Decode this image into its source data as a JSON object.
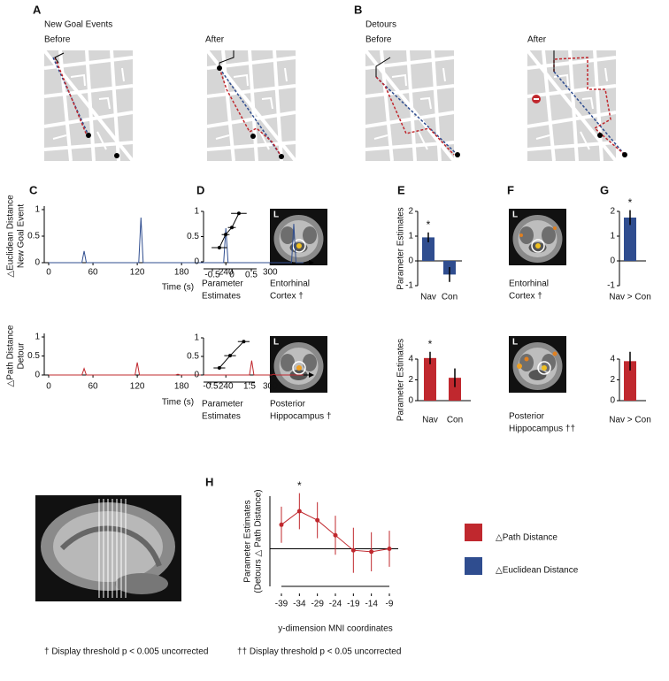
{
  "panel_letters": [
    "A",
    "B",
    "C",
    "D",
    "E",
    "F",
    "G",
    "H"
  ],
  "map_panels": [
    {
      "title": "New Goal Events",
      "before": "Before",
      "after": "After"
    },
    {
      "title": "Detours",
      "before": "Before",
      "after": "After"
    }
  ],
  "brains": [
    {
      "side": "L",
      "region": [
        "Entorhinal",
        "Cortex †"
      ]
    },
    {
      "side": "L",
      "region": [
        "Posterior",
        "Hippocampus †"
      ]
    },
    {
      "side": "L",
      "region": [
        "Entorhinal",
        "Cortex †"
      ]
    },
    {
      "side": "L",
      "region": [
        "Posterior",
        "Hippocampus ††"
      ]
    }
  ],
  "legend": [
    {
      "name": "△Path Distance",
      "color": "#c0282e"
    },
    {
      "name": "△Euclidean Distance",
      "color": "#2f4d8f"
    }
  ],
  "footnotes": [
    "† Display threshold p < 0.005 uncorrected",
    "†† Display threshold p < 0.05 uncorrected"
  ],
  "chart_data": [
    {
      "type": "line",
      "y_label": [
        "△Euclidean Distance",
        "New Goal Event"
      ],
      "x_label": "Time (s)",
      "color": "#2f4d8f",
      "x": [
        0,
        45,
        48,
        51,
        122,
        125,
        128,
        237,
        240,
        243,
        329,
        332,
        335,
        345
      ],
      "values": [
        0,
        0,
        0.22,
        0,
        0,
        0.85,
        0,
        0,
        0.65,
        0,
        0,
        0.73,
        0,
        0
      ],
      "xlim": [
        0,
        350
      ],
      "xticks": [
        0,
        60,
        120,
        180,
        240,
        300
      ],
      "ylim": [
        0,
        1
      ],
      "yticks": [
        0,
        0.5,
        1
      ]
    },
    {
      "type": "line",
      "y_label": [
        "△Path Distance",
        "Detour"
      ],
      "x_label": "Time (s)",
      "color": "#c0282e",
      "x": [
        0,
        45,
        48,
        51,
        117,
        120,
        123,
        172,
        175,
        178,
        272,
        275,
        278,
        302,
        305,
        308,
        345
      ],
      "values": [
        0,
        0,
        0.17,
        0,
        0,
        0.33,
        0,
        0,
        0.02,
        0,
        0,
        0.38,
        0,
        0,
        0.02,
        0,
        0
      ],
      "xlim": [
        0,
        350
      ],
      "xticks": [
        0,
        60,
        120,
        180,
        240,
        300
      ],
      "ylim": [
        0,
        1
      ],
      "yticks": [
        0,
        0.5,
        1
      ]
    },
    {
      "type": "scatter",
      "x_label": [
        "Parameter",
        "Estimates"
      ],
      "x": [
        -0.32,
        -0.16,
        0,
        0.18
      ],
      "values": [
        0.28,
        0.54,
        0.68,
        0.96
      ],
      "xerr": [
        0.2,
        0.1,
        0.1,
        0.2
      ],
      "xlim": [
        -0.5,
        0.5
      ],
      "xticks": [
        -0.5,
        0,
        0.5
      ],
      "ylim": [
        0,
        1
      ],
      "yticks": [
        0,
        0.5,
        1
      ]
    },
    {
      "type": "scatter",
      "x_label": [
        "Parameter",
        "Estimates"
      ],
      "x": [
        -0.05,
        0.5,
        1.2
      ],
      "values": [
        0.19,
        0.52,
        0.9
      ],
      "xerr": [
        0.3,
        0.3,
        0.3
      ],
      "xlim": [
        -0.5,
        1.5
      ],
      "xticks": [
        -0.5,
        1.5
      ],
      "ylim": [
        0,
        1
      ],
      "yticks": [
        0,
        0.5,
        1
      ]
    },
    {
      "type": "bar",
      "y_label": "Parameter Estimates",
      "color": "#2f4d8f",
      "categories": [
        "Nav",
        "Con"
      ],
      "values": [
        0.95,
        -0.55
      ],
      "errors": [
        0.2,
        0.3
      ],
      "ylim": [
        -1,
        2
      ],
      "yticks": [
        -1,
        0,
        1,
        2
      ],
      "annotations": [
        {
          "text": "*",
          "x": "Nav"
        }
      ]
    },
    {
      "type": "bar",
      "y_label": "Parameter Estimates",
      "color": "#c0282e",
      "categories": [
        "Nav",
        "Con"
      ],
      "values": [
        4.1,
        2.2
      ],
      "errors": [
        0.6,
        0.9
      ],
      "ylim": [
        0,
        4
      ],
      "yticks": [
        0,
        2,
        4
      ],
      "annotations": [
        {
          "text": "*",
          "x": "Nav"
        }
      ]
    },
    {
      "type": "bar",
      "color": "#2f4d8f",
      "categories": [
        "Nav > Con"
      ],
      "values": [
        1.75
      ],
      "errors": [
        0.3
      ],
      "ylim": [
        -1,
        2
      ],
      "yticks": [
        -1,
        0,
        1,
        2
      ],
      "annotations": [
        {
          "text": "*",
          "x": "Nav > Con"
        }
      ]
    },
    {
      "type": "bar",
      "color": "#c0282e",
      "categories": [
        "Nav > Con"
      ],
      "values": [
        3.8
      ],
      "errors": [
        0.9
      ],
      "ylim": [
        0,
        4
      ],
      "yticks": [
        0,
        2,
        4
      ]
    },
    {
      "type": "line",
      "y_label": [
        "Parameter Estimates",
        "(Detours △ Path Distance)"
      ],
      "x_label": "y-dimension MNI coordinates",
      "color": "#c0282e",
      "x": [
        -39,
        -34,
        -29,
        -24,
        -19,
        -14,
        -9
      ],
      "values": [
        1.6,
        2.5,
        1.9,
        0.9,
        -0.1,
        -0.2,
        0
      ],
      "errors": [
        1.2,
        1.2,
        1.2,
        1.3,
        1.5,
        1.3,
        1.2
      ],
      "xlim": [
        -39,
        -9
      ],
      "xticks": [
        -39,
        -34,
        -29,
        -24,
        -19,
        -14,
        -9
      ],
      "ylim": [
        -2.5,
        3.5
      ],
      "annotations": [
        {
          "text": "*",
          "x": -34
        }
      ]
    }
  ]
}
